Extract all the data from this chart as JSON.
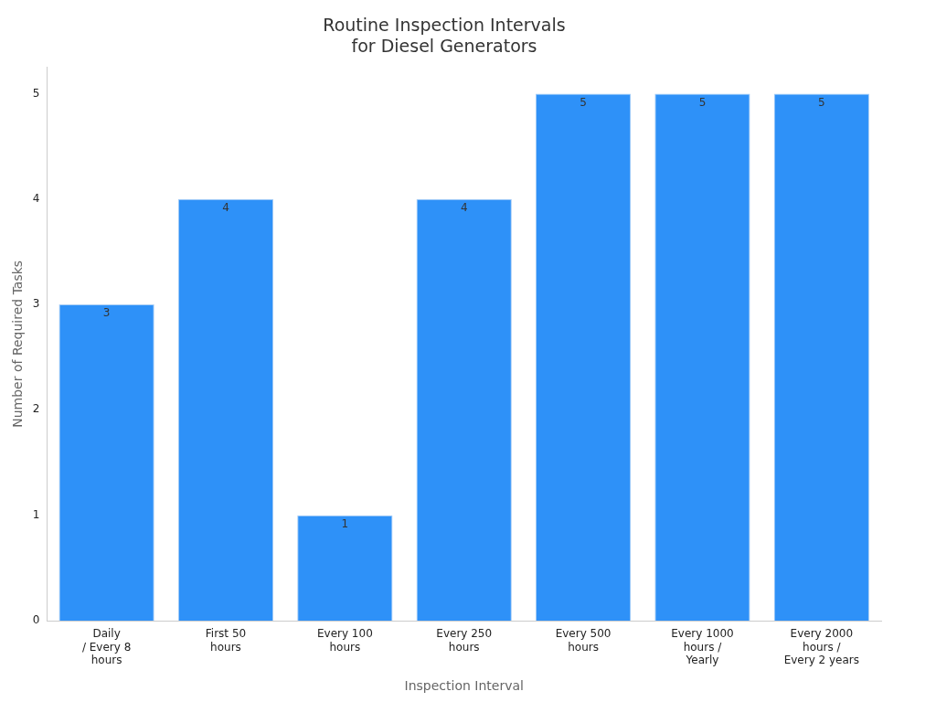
{
  "chart_data": {
    "type": "bar",
    "title": "Routine Inspection Intervals\nfor Diesel Generators",
    "xlabel": "Inspection Interval",
    "ylabel": "Number of Required Tasks",
    "categories": [
      "Daily\n/ Every 8\nhours",
      "First 50\nhours",
      "Every 100\nhours",
      "Every 250\nhours",
      "Every 500\nhours",
      "Every 1000\nhours /\nYearly",
      "Every 2000\nhours /\nEvery 2 years"
    ],
    "values": [
      3,
      4,
      1,
      4,
      5,
      5,
      5
    ],
    "color": "#2e91f8",
    "ylim": [
      0,
      5.25
    ],
    "yticks": [
      0,
      1,
      2,
      3,
      4,
      5
    ],
    "data_labels": true
  }
}
